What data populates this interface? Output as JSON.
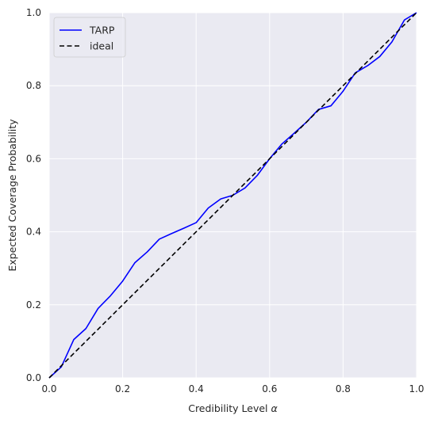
{
  "chart_data": {
    "type": "line",
    "title": "",
    "xlabel": "Credibility Level",
    "xlabel_symbol": "α",
    "ylabel": "Expected Coverage Probability",
    "xlim": [
      0,
      1
    ],
    "ylim": [
      0,
      1
    ],
    "xticks": [
      "0.0",
      "0.2",
      "0.4",
      "0.6",
      "0.8",
      "1.0"
    ],
    "yticks": [
      "0.0",
      "0.2",
      "0.4",
      "0.6",
      "0.8",
      "1.0"
    ],
    "grid": true,
    "legend_position": "top-left",
    "series": [
      {
        "name": "TARP",
        "color": "#0000ff",
        "style": "solid",
        "x": [
          0,
          0.033,
          0.067,
          0.1,
          0.133,
          0.167,
          0.2,
          0.233,
          0.267,
          0.3,
          0.333,
          0.367,
          0.4,
          0.433,
          0.467,
          0.5,
          0.533,
          0.567,
          0.6,
          0.633,
          0.667,
          0.7,
          0.733,
          0.767,
          0.8,
          0.833,
          0.867,
          0.9,
          0.933,
          0.967,
          1.0
        ],
        "y": [
          0,
          0.03,
          0.105,
          0.135,
          0.19,
          0.225,
          0.265,
          0.315,
          0.345,
          0.38,
          0.395,
          0.41,
          0.425,
          0.465,
          0.49,
          0.5,
          0.52,
          0.555,
          0.6,
          0.64,
          0.67,
          0.7,
          0.735,
          0.745,
          0.785,
          0.835,
          0.855,
          0.88,
          0.92,
          0.98,
          1.0
        ]
      },
      {
        "name": "ideal",
        "color": "#000000",
        "style": "dashed",
        "x": [
          0,
          1
        ],
        "y": [
          0,
          1
        ]
      }
    ]
  },
  "colors": {
    "plot_background": "#eaeaf2",
    "grid": "#ffffff"
  }
}
